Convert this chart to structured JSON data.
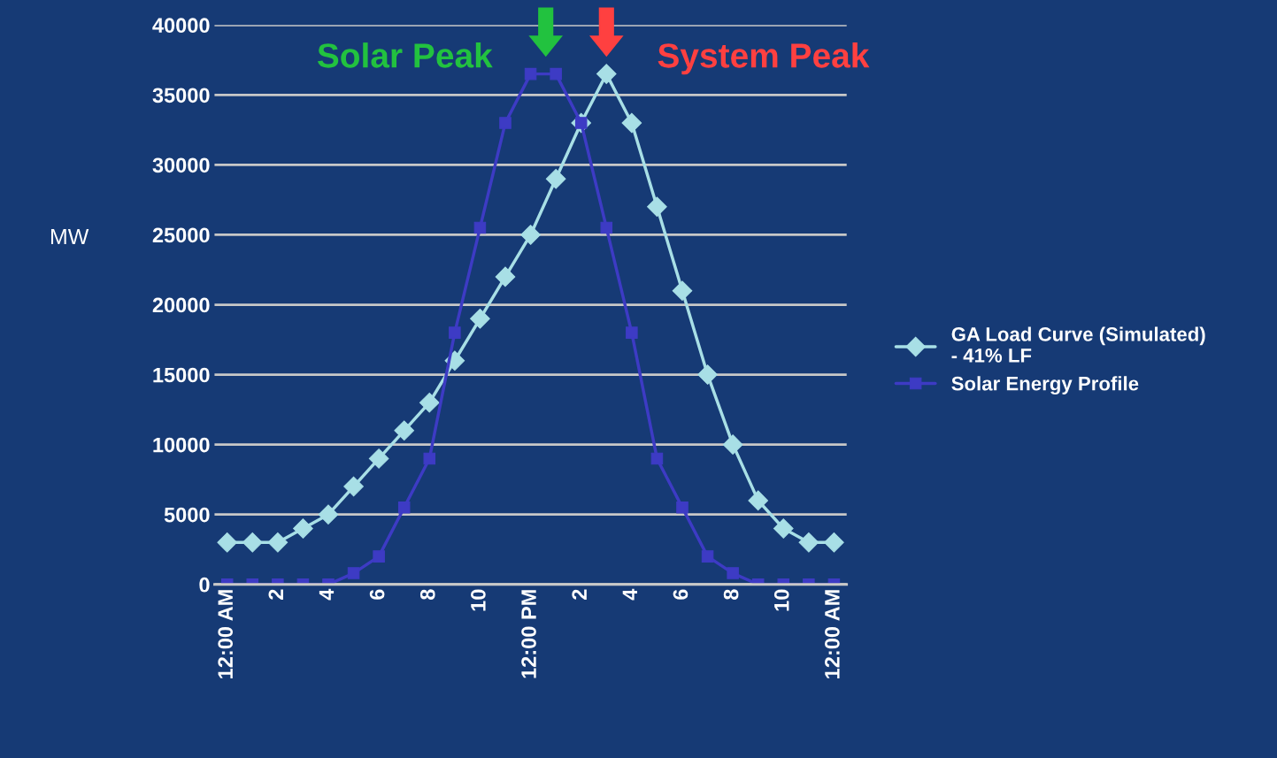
{
  "chart_data": {
    "type": "line",
    "ylabel": "MW",
    "categories": [
      "12:00 AM",
      null,
      "2",
      null,
      "4",
      null,
      "6",
      null,
      "8",
      null,
      "10",
      null,
      "12:00 PM",
      null,
      "2",
      null,
      "4",
      null,
      "6",
      null,
      "8",
      null,
      "10",
      null,
      "12:00 AM"
    ],
    "series": [
      {
        "name": "GA Load Curve (Simulated)\n- 41% LF",
        "color": "#a8dfe6",
        "marker": "diamond",
        "values": [
          3000,
          3000,
          3000,
          4000,
          5000,
          7000,
          9000,
          11000,
          13000,
          16000,
          19000,
          22000,
          25000,
          29000,
          33000,
          36500,
          33000,
          27000,
          21000,
          15000,
          10000,
          6000,
          4000,
          3000,
          3000
        ]
      },
      {
        "name": "Solar Energy Profile",
        "color": "#3d3bc4",
        "marker": "square",
        "values": [
          0,
          0,
          0,
          0,
          0,
          800,
          2000,
          5500,
          9000,
          18000,
          25500,
          33000,
          36500,
          36500,
          33000,
          25500,
          18000,
          9000,
          5500,
          2000,
          800,
          0,
          0,
          0,
          0
        ]
      }
    ],
    "annotations": [
      "Solar Peak",
      "System Peak"
    ],
    "ylim": [
      0,
      40000
    ],
    "yticks": [
      0,
      5000,
      10000,
      15000,
      20000,
      25000,
      30000,
      35000,
      40000
    ],
    "grid": "y",
    "legend": "right",
    "line_style": "solid"
  }
}
